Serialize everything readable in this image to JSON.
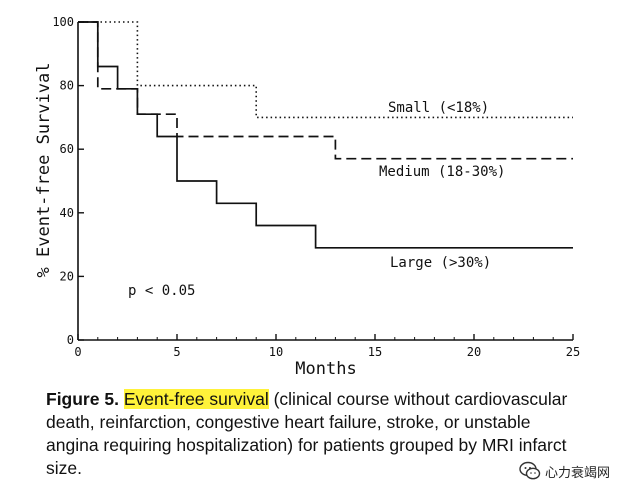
{
  "chart_data": {
    "type": "line",
    "title": "",
    "xlabel": "Months",
    "ylabel": "% Event-free Survival",
    "xlim": [
      0,
      25
    ],
    "ylim": [
      0,
      100
    ],
    "x_ticks": [
      0,
      5,
      10,
      15,
      20,
      25
    ],
    "y_ticks": [
      0,
      20,
      40,
      60,
      80,
      100
    ],
    "grid": false,
    "annotation": "p < 0.05",
    "series": [
      {
        "name": "Small (<18%)",
        "style": "dotted",
        "x": [
          0,
          3,
          3,
          9,
          9,
          25
        ],
        "y": [
          100,
          100,
          80,
          80,
          70,
          70
        ]
      },
      {
        "name": "Medium (18-30%)",
        "style": "dashed",
        "x": [
          0,
          1,
          1,
          2,
          2,
          3,
          3,
          4,
          4,
          5,
          5,
          13,
          13,
          25
        ],
        "y": [
          100,
          100,
          79,
          79,
          79,
          79,
          71,
          71,
          71,
          71,
          64,
          64,
          57,
          57
        ]
      },
      {
        "name": "Large (>30%)",
        "style": "solid",
        "x": [
          0,
          1,
          1,
          2,
          2,
          3,
          3,
          4,
          4,
          5,
          5,
          7,
          7,
          9,
          9,
          12,
          12,
          25
        ],
        "y": [
          100,
          100,
          86,
          86,
          79,
          79,
          71,
          71,
          64,
          64,
          50,
          50,
          43,
          43,
          36,
          36,
          29,
          29
        ]
      }
    ]
  },
  "caption": {
    "figure_label": "Figure  5.",
    "highlight": "Event-free survival",
    "text": " (clinical course without cardiovascular death, reinfarction, congestive heart failure, stroke, or unstable angina requiring hospitalization) for patients grouped by MRI infarct size."
  },
  "watermark": {
    "text": "心力衰竭网",
    "icon": "wechat-icon"
  }
}
